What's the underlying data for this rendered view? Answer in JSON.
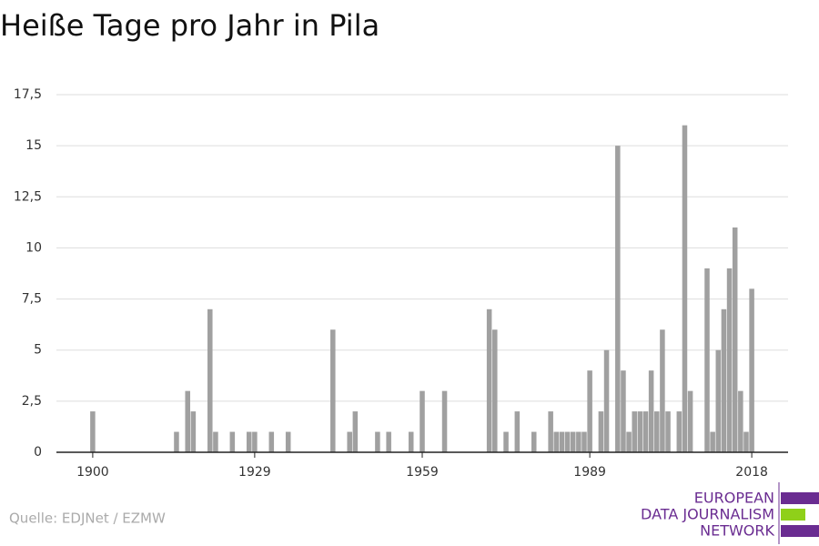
{
  "chart_data": {
    "type": "bar",
    "title": "Heiße Tage pro Jahr in Pila",
    "source": "Quelle: EDJNet / EZMW",
    "logo": [
      "EUROPEAN",
      "DATA JOURNALISM",
      "NETWORK"
    ],
    "color": "#a0a0a0",
    "x": [
      1900,
      1901,
      1902,
      1903,
      1904,
      1905,
      1906,
      1907,
      1908,
      1909,
      1910,
      1911,
      1912,
      1913,
      1914,
      1915,
      1916,
      1917,
      1918,
      1919,
      1920,
      1921,
      1922,
      1923,
      1924,
      1925,
      1926,
      1927,
      1928,
      1929,
      1930,
      1931,
      1932,
      1933,
      1934,
      1935,
      1936,
      1937,
      1938,
      1939,
      1940,
      1941,
      1942,
      1943,
      1944,
      1945,
      1946,
      1947,
      1948,
      1949,
      1950,
      1951,
      1952,
      1953,
      1954,
      1955,
      1956,
      1957,
      1958,
      1959,
      1960,
      1961,
      1962,
      1963,
      1964,
      1965,
      1966,
      1967,
      1968,
      1969,
      1970,
      1971,
      1972,
      1973,
      1974,
      1975,
      1976,
      1977,
      1978,
      1979,
      1980,
      1981,
      1982,
      1983,
      1984,
      1985,
      1986,
      1987,
      1988,
      1989,
      1990,
      1991,
      1992,
      1993,
      1994,
      1995,
      1996,
      1997,
      1998,
      1999,
      2000,
      2001,
      2002,
      2003,
      2004,
      2005,
      2006,
      2007,
      2008,
      2009,
      2010,
      2011,
      2012,
      2013,
      2014,
      2015,
      2016,
      2017,
      2018
    ],
    "values": [
      2,
      0,
      0,
      0,
      0,
      0,
      0,
      0,
      0,
      0,
      0,
      0,
      0,
      0,
      0,
      1,
      0,
      3,
      2,
      0,
      0,
      7,
      1,
      0,
      0,
      1,
      0,
      0,
      1,
      1,
      0,
      0,
      1,
      0,
      0,
      1,
      0,
      0,
      0,
      0,
      0,
      0,
      0,
      6,
      0,
      0,
      1,
      2,
      0,
      0,
      0,
      1,
      0,
      1,
      0,
      0,
      0,
      1,
      0,
      3,
      0,
      0,
      0,
      3,
      0,
      0,
      0,
      0,
      0,
      0,
      0,
      7,
      6,
      0,
      1,
      0,
      2,
      0,
      0,
      1,
      0,
      0,
      2,
      1,
      1,
      1,
      1,
      1,
      1,
      4,
      0,
      2,
      5,
      0,
      15,
      4,
      1,
      2,
      2,
      2,
      4,
      2,
      6,
      2,
      0,
      2,
      16,
      3,
      0,
      0,
      9,
      1,
      5,
      7,
      9,
      11,
      3,
      1,
      8
    ],
    "xlim": [
      1893.5,
      2024.5
    ],
    "xticks": [
      1900,
      1929,
      1959,
      1989,
      2018
    ],
    "ylim": [
      0,
      17.5
    ],
    "yticks": [
      0,
      {
        "value": 2.5,
        "label": "2,5"
      },
      5,
      {
        "value": 7.5,
        "label": "7,5"
      },
      10,
      {
        "value": 12.5,
        "label": "12,5"
      },
      15,
      {
        "value": 17.5,
        "label": "17,5"
      }
    ],
    "grid": true
  }
}
